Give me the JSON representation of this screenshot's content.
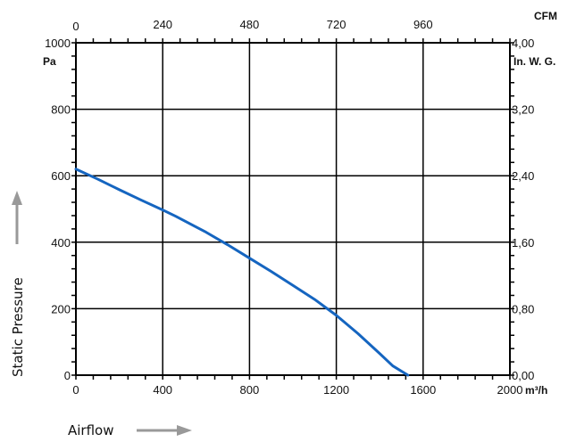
{
  "chart_data": {
    "type": "line",
    "title": "",
    "xlabel": "Airflow",
    "ylabel": "Static Pressure",
    "x_unit": "m³/h",
    "y_unit": "Pa",
    "x2_unit": "CFM",
    "y2_unit": "In. W. G.",
    "xlim": [
      0,
      2000
    ],
    "ylim": [
      0,
      1000
    ],
    "x2lim": [
      0,
      1200
    ],
    "y2lim": [
      0,
      4.0
    ],
    "grid": true,
    "x_ticks": [
      "0",
      "400",
      "800",
      "1200",
      "1600",
      "2000"
    ],
    "y_ticks": [
      "0",
      "200",
      "400",
      "600",
      "800",
      "1000"
    ],
    "x2_ticks": [
      "0",
      "240",
      "480",
      "720",
      "960"
    ],
    "y2_ticks": [
      "0,00",
      "0,80",
      "1,60",
      "2,40",
      "3,20",
      "4,00"
    ],
    "series": [
      {
        "color": "#1565c0",
        "x": [
          0,
          100,
          200,
          300,
          400,
          460,
          600,
          700,
          800,
          900,
          1000,
          1100,
          1200,
          1300,
          1400,
          1460,
          1530
        ],
        "y": [
          620,
          590,
          558,
          527,
          497,
          478,
          430,
          392,
          352,
          312,
          270,
          228,
          180,
          125,
          65,
          28,
          0
        ]
      }
    ],
    "colors": {
      "grid": "#000000",
      "curve": "#1565c0",
      "arrow": "#999999"
    }
  }
}
